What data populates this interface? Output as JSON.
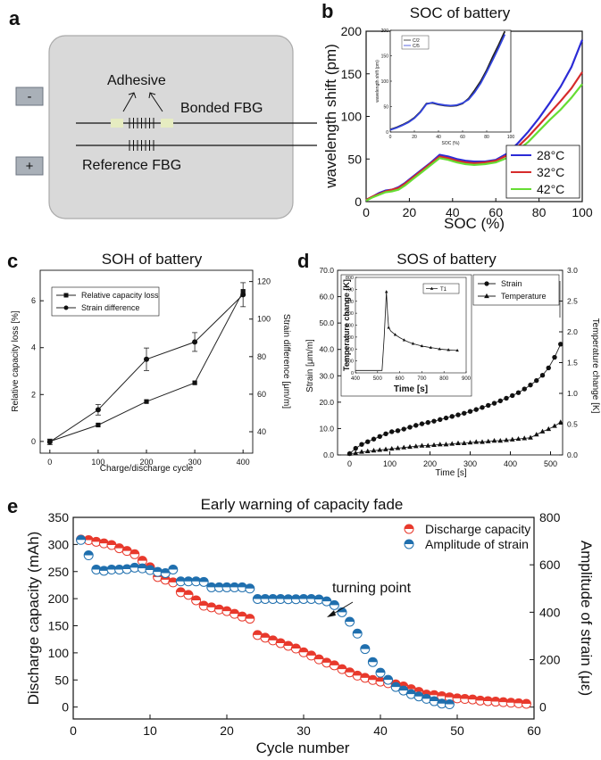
{
  "panels": {
    "a": {
      "letter": "a",
      "minus_label": "-",
      "plus_label": "+",
      "adhesive_label": "Adhesive",
      "bonded_label": "Bonded FBG",
      "reference_label": "Reference FBG"
    },
    "b_letter": "b",
    "c_letter": "c",
    "d_letter": "d",
    "e_letter": "e"
  },
  "colors": {
    "blue": "#2b2bd6",
    "red": "#d62b2b",
    "green": "#66dd33",
    "e_red": "#e8392c",
    "e_blue": "#1f6fae",
    "cell": "#d9d9d9",
    "terminal": "#a9b0b8",
    "adhesive": "#e6ecc1"
  },
  "chart_data": [
    {
      "id": "b",
      "type": "line",
      "title": "SOC of battery",
      "xlabel": "SOC (%)",
      "ylabel": "wavelength shift (pm)",
      "xlim": [
        0,
        100
      ],
      "ylim": [
        0,
        200
      ],
      "xticks": [
        0,
        20,
        40,
        60,
        80,
        100
      ],
      "yticks": [
        0,
        50,
        100,
        150,
        200
      ],
      "legend_position": "bottom-right",
      "series": [
        {
          "name": "28°C",
          "color": "#2b2bd6",
          "x": [
            0,
            3,
            6,
            9,
            12,
            15,
            18,
            22,
            26,
            30,
            34,
            38,
            42,
            46,
            50,
            55,
            60,
            65,
            70,
            75,
            80,
            85,
            90,
            95,
            100
          ],
          "y": [
            2,
            6,
            10,
            13,
            14,
            17,
            22,
            30,
            38,
            46,
            55,
            53,
            50,
            48,
            47,
            47,
            49,
            56,
            68,
            82,
            98,
            116,
            135,
            158,
            190
          ]
        },
        {
          "name": "32°C",
          "color": "#d62b2b",
          "x": [
            0,
            3,
            6,
            9,
            12,
            15,
            18,
            22,
            26,
            30,
            34,
            38,
            42,
            46,
            50,
            55,
            60,
            65,
            70,
            75,
            80,
            85,
            90,
            95,
            100
          ],
          "y": [
            2,
            6,
            9,
            12,
            14,
            16,
            21,
            29,
            37,
            45,
            53,
            51,
            48,
            46,
            45,
            46,
            48,
            54,
            64,
            76,
            90,
            104,
            118,
            133,
            152
          ]
        },
        {
          "name": "42°C",
          "color": "#66dd33",
          "x": [
            0,
            3,
            6,
            9,
            12,
            15,
            18,
            22,
            26,
            30,
            34,
            38,
            42,
            46,
            50,
            55,
            60,
            65,
            70,
            75,
            80,
            85,
            90,
            95,
            100
          ],
          "y": [
            1,
            5,
            8,
            11,
            12,
            14,
            19,
            27,
            35,
            43,
            51,
            49,
            46,
            44,
            43,
            44,
            46,
            51,
            60,
            70,
            83,
            96,
            108,
            122,
            138
          ]
        }
      ],
      "inset": {
        "ylabel": "wavelength shift (pm)",
        "xlabel": "SOC (%)",
        "xlim": [
          0,
          100
        ],
        "ylim": [
          0,
          200
        ],
        "xticks": [
          0,
          20,
          40,
          60,
          80,
          100
        ],
        "yticks": [
          0,
          50,
          100,
          150,
          200
        ],
        "series": [
          {
            "name": "C/2",
            "color": "#222222",
            "x": [
              0,
              5,
              10,
              15,
              20,
              25,
              30,
              35,
              40,
              45,
              50,
              55,
              60,
              65,
              70,
              75,
              80,
              85,
              90,
              95
            ],
            "y": [
              5,
              9,
              14,
              20,
              28,
              40,
              56,
              57,
              54,
              52,
              51,
              52,
              56,
              66,
              82,
              100,
              122,
              148,
              172,
              198
            ]
          },
          {
            "name": "C/5",
            "color": "#3344dd",
            "x": [
              0,
              5,
              10,
              15,
              20,
              25,
              30,
              35,
              40,
              45,
              50,
              55,
              60,
              65,
              70,
              75,
              80,
              85,
              90,
              95
            ],
            "y": [
              4,
              8,
              13,
              19,
              27,
              39,
              55,
              58,
              55,
              53,
              52,
              53,
              57,
              64,
              78,
              96,
              118,
              142,
              166,
              192
            ]
          }
        ]
      }
    },
    {
      "id": "c",
      "type": "line",
      "title": "SOH of battery",
      "xlabel": "Charge/discharge cycle",
      "ylabel": "Relative capacity loss [%]",
      "y2label": "Strain difference [μm/m]",
      "xlim": [
        -20,
        420
      ],
      "ylim": [
        -0.5,
        7.3
      ],
      "y2lim": [
        28.6,
        126
      ],
      "xticks": [
        0,
        100,
        200,
        300,
        400
      ],
      "yticks": [
        0,
        2,
        4,
        6
      ],
      "y2ticks": [
        40,
        60,
        80,
        100,
        120
      ],
      "legend_position": "top-left",
      "series": [
        {
          "name": "Relative capacity loss",
          "marker": "square",
          "axis": "left",
          "x": [
            0,
            100,
            200,
            300,
            400
          ],
          "y": [
            0,
            0.7,
            1.7,
            2.5,
            6.4
          ]
        },
        {
          "name": "Strain difference",
          "marker": "circle",
          "axis": "right",
          "x": [
            0,
            100,
            200,
            300,
            400
          ],
          "y": [
            34.6,
            51.7,
            78.6,
            87.8,
            113
          ],
          "yerr": [
            1.5,
            2.8,
            6.0,
            5.0,
            6.4
          ]
        }
      ]
    },
    {
      "id": "d",
      "type": "line",
      "title": "SOS of battery",
      "xlabel": "Time [s]",
      "ylabel": "Strain [μm/m]",
      "y2label": "Temperature change [K]",
      "xlim": [
        -30,
        530
      ],
      "ylim": [
        0,
        70
      ],
      "y2lim": [
        0,
        3
      ],
      "xticks": [
        0,
        100,
        200,
        300,
        400,
        500
      ],
      "xticklabels": [
        "0",
        "100",
        "200",
        "300",
        "400",
        "500"
      ],
      "yticks": [
        0,
        10,
        20,
        30,
        40,
        50,
        60,
        70
      ],
      "yticklabels": [
        "0.0",
        "10.0",
        "20.0",
        "30.0",
        "40.0",
        "50.0",
        "60.0",
        "70.0"
      ],
      "y2ticks": [
        0,
        0.5,
        1,
        1.5,
        2,
        2.5,
        3
      ],
      "y2ticklabels": [
        "0.0",
        "0.5",
        "1.0",
        "1.5",
        "2.0",
        "2.5",
        "3.0"
      ],
      "legend_position": "top-right",
      "series": [
        {
          "name": "Strain",
          "marker": "circle",
          "axis": "left",
          "x": [
            0,
            15,
            30,
            45,
            60,
            75,
            90,
            105,
            120,
            135,
            150,
            165,
            180,
            195,
            210,
            225,
            240,
            255,
            270,
            285,
            300,
            315,
            330,
            345,
            360,
            375,
            390,
            405,
            420,
            435,
            450,
            465,
            480,
            495,
            510,
            525
          ],
          "y": [
            0.5,
            2.5,
            4,
            5,
            6,
            7,
            8,
            8.8,
            9.2,
            9.8,
            10.5,
            11.2,
            11.8,
            12.3,
            12.8,
            13.4,
            14,
            14.6,
            15.2,
            15.8,
            16.5,
            17.2,
            18,
            18.8,
            19.6,
            20.5,
            21.5,
            22.5,
            23.6,
            25,
            26.5,
            28.2,
            30.2,
            33,
            37,
            42
          ]
        },
        {
          "name": "Temperature",
          "marker": "triangle",
          "axis": "right",
          "x": [
            0,
            15,
            30,
            45,
            60,
            75,
            90,
            105,
            120,
            135,
            150,
            165,
            180,
            195,
            210,
            225,
            240,
            255,
            270,
            285,
            300,
            315,
            330,
            345,
            360,
            375,
            390,
            405,
            420,
            435,
            450,
            465,
            480,
            495,
            510,
            525
          ],
          "y": [
            0.02,
            0.03,
            0.05,
            0.06,
            0.07,
            0.08,
            0.09,
            0.1,
            0.11,
            0.12,
            0.13,
            0.14,
            0.15,
            0.15,
            0.16,
            0.17,
            0.17,
            0.18,
            0.19,
            0.19,
            0.2,
            0.21,
            0.21,
            0.22,
            0.23,
            0.23,
            0.24,
            0.25,
            0.26,
            0.27,
            0.28,
            0.33,
            0.38,
            0.42,
            0.47,
            0.53
          ]
        }
      ],
      "inset": {
        "ylabel": "Temperature change [K]",
        "xlabel": "Time [s]",
        "xlim": [
          400,
          900
        ],
        "ylim": [
          0,
          800
        ],
        "xticks": [
          400,
          500,
          600,
          700,
          800,
          900
        ],
        "yticks": [
          0,
          100,
          200,
          300,
          400,
          500,
          600,
          700,
          800
        ],
        "legend": "T1",
        "series": [
          {
            "name": "T1",
            "x": [
              400,
              420,
              440,
              460,
              480,
              500,
              520,
              530,
              540,
              545,
              550,
              560,
              580,
              600,
              620,
              640,
              660,
              680,
              700,
              720,
              740,
              760,
              780,
              800,
              820,
              840,
              860
            ],
            "y": [
              20,
              20,
              20,
              20,
              20,
              20,
              20,
              300,
              680,
              500,
              380,
              350,
              320,
              295,
              275,
              258,
              245,
              235,
              225,
              218,
              212,
              206,
              200,
              196,
              193,
              190,
              188
            ]
          }
        ]
      }
    },
    {
      "id": "e",
      "type": "scatter",
      "title": "Early warning of capacity fade",
      "xlabel": "Cycle number",
      "ylabel": "Discharge capacity (mAh)",
      "y2label": "Amplitude of strain (με)",
      "xlim": [
        0,
        60
      ],
      "ylim": [
        -22,
        350
      ],
      "y2lim": [
        -50,
        800
      ],
      "xticks": [
        0,
        10,
        20,
        30,
        40,
        50,
        60
      ],
      "yticks": [
        0,
        50,
        100,
        150,
        200,
        250,
        300,
        350
      ],
      "y2ticks": [
        0,
        200,
        400,
        600,
        800
      ],
      "legend_position": "top-right",
      "annotation": "turning point",
      "series": [
        {
          "name": "Discharge capacity",
          "color": "#e8392c",
          "axis": "left",
          "x": [
            1,
            2,
            3,
            4,
            5,
            6,
            7,
            8,
            9,
            10,
            11,
            12,
            13,
            14,
            15,
            16,
            17,
            18,
            19,
            20,
            21,
            22,
            23,
            24,
            25,
            26,
            27,
            28,
            29,
            30,
            31,
            32,
            33,
            34,
            35,
            36,
            37,
            38,
            39,
            40,
            41,
            42,
            43,
            44,
            45,
            46,
            47,
            48,
            49,
            50,
            51,
            52,
            53,
            54,
            55,
            56,
            57,
            58,
            59
          ],
          "y": [
            309,
            308,
            305,
            302,
            299,
            293,
            288,
            282,
            270,
            258,
            240,
            235,
            230,
            212,
            207,
            197,
            187,
            184,
            180,
            177,
            172,
            167,
            163,
            133,
            128,
            123,
            118,
            113,
            108,
            101,
            95,
            88,
            82,
            77,
            70,
            64,
            58,
            54,
            50,
            47,
            44,
            42,
            38,
            33,
            28,
            23,
            22,
            20,
            18,
            16,
            15,
            14,
            12,
            11,
            10,
            9,
            8,
            7,
            6
          ]
        },
        {
          "name": "Amplitude of strain",
          "color": "#1f6fae",
          "axis": "right",
          "x": [
            1,
            2,
            3,
            4,
            5,
            6,
            7,
            8,
            9,
            10,
            11,
            12,
            13,
            14,
            15,
            16,
            17,
            18,
            19,
            20,
            21,
            22,
            23,
            24,
            25,
            26,
            27,
            28,
            29,
            30,
            31,
            32,
            33,
            34,
            35,
            36,
            37,
            38,
            39,
            40,
            41,
            42,
            43,
            44,
            45,
            46,
            47,
            48,
            49
          ],
          "y": [
            705,
            640,
            580,
            575,
            580,
            580,
            582,
            588,
            585,
            578,
            570,
            565,
            580,
            530,
            530,
            530,
            528,
            505,
            505,
            505,
            505,
            505,
            500,
            456,
            456,
            456,
            456,
            455,
            455,
            456,
            456,
            454,
            446,
            430,
            400,
            360,
            310,
            245,
            190,
            145,
            115,
            85,
            70,
            55,
            45,
            35,
            25,
            15,
            12
          ]
        }
      ]
    }
  ]
}
